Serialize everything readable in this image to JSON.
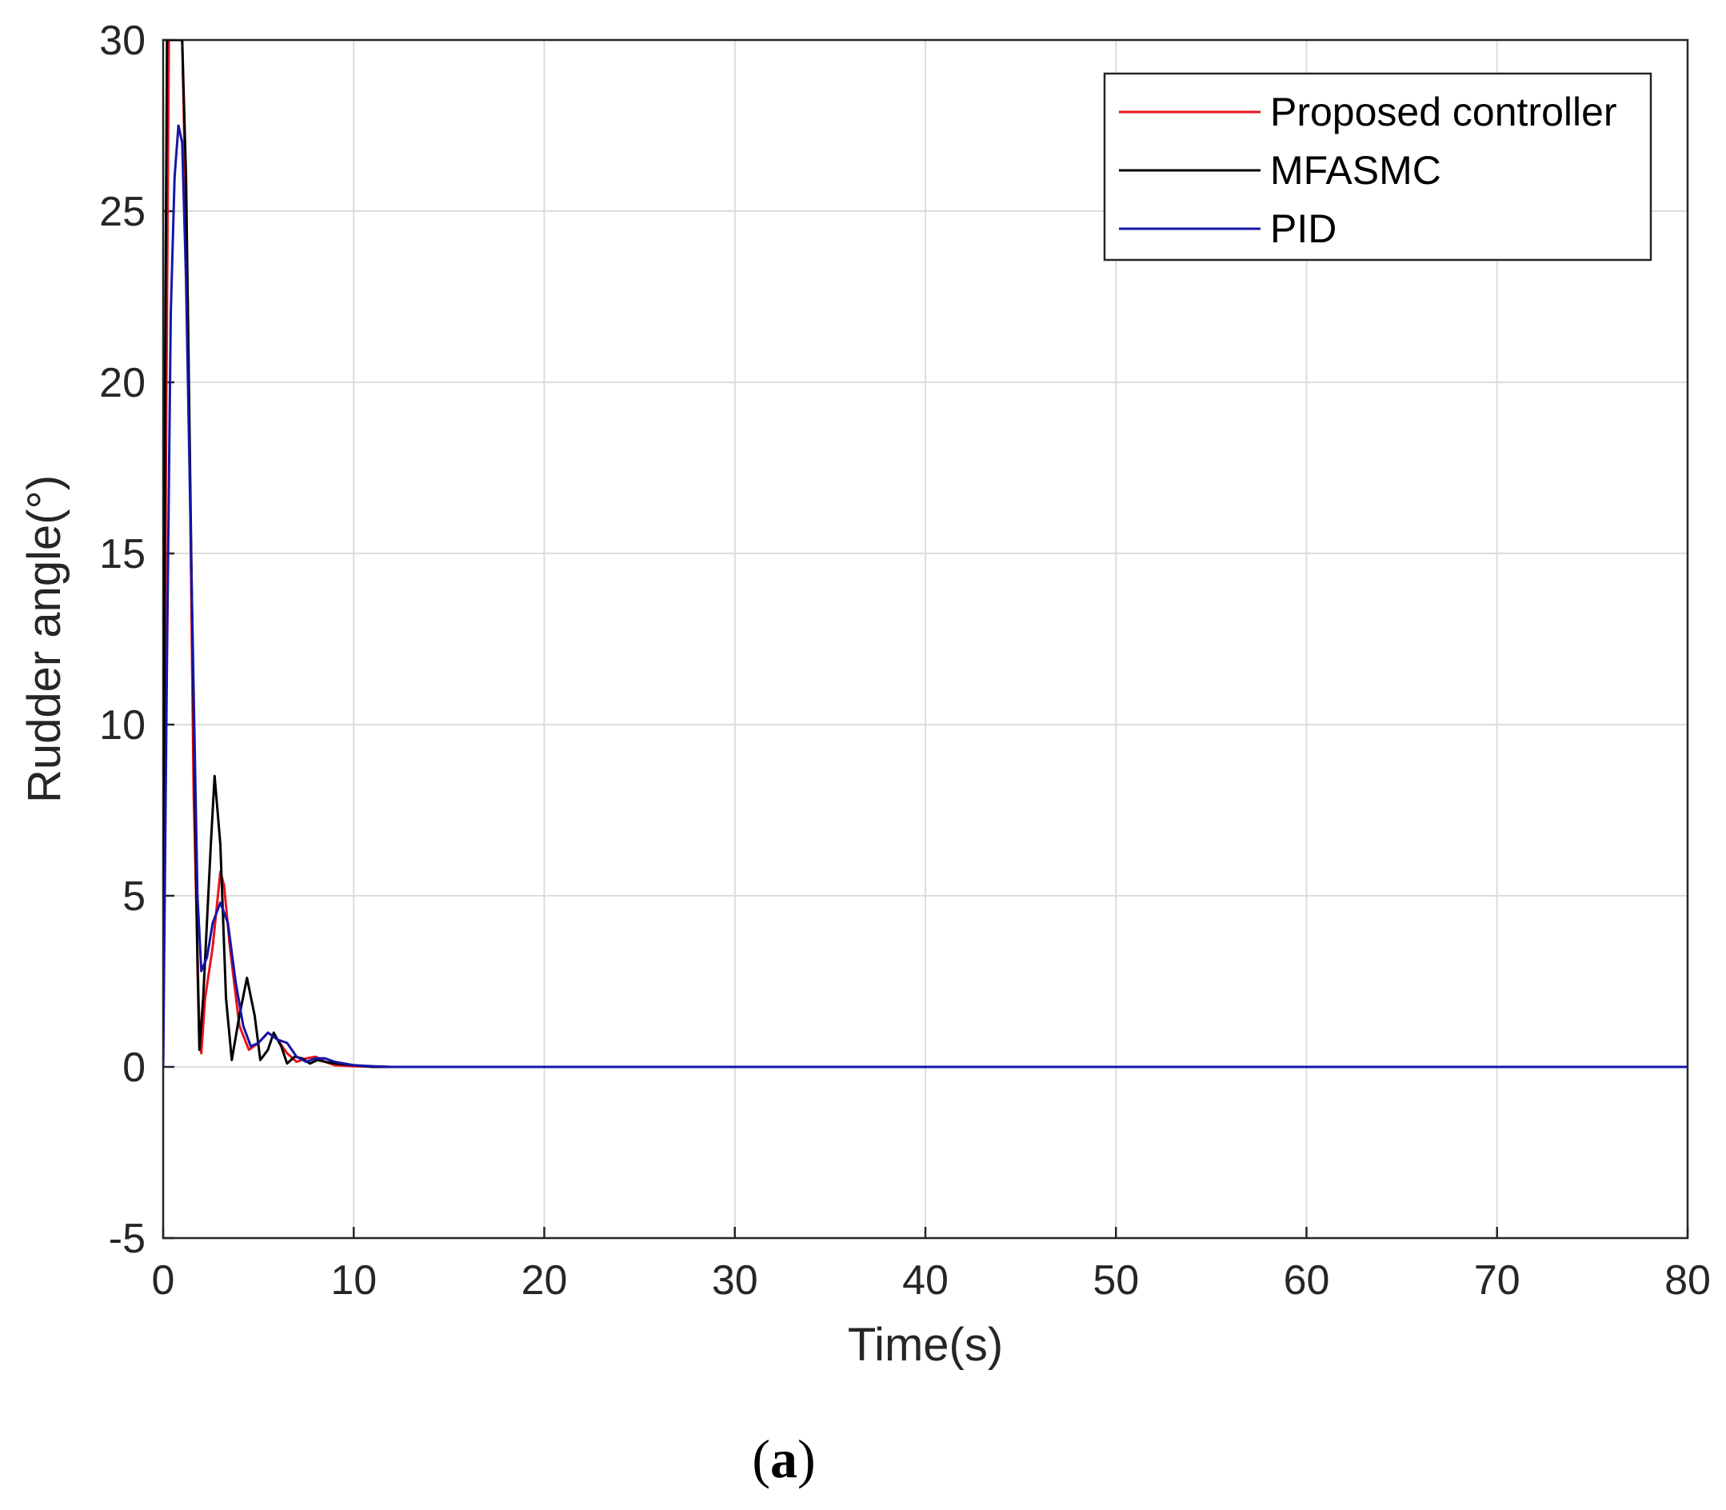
{
  "chart_data": {
    "type": "line",
    "xlabel": "Time(s)",
    "ylabel": "Rudder angle(°)",
    "xlim": [
      0,
      80
    ],
    "ylim": [
      -5,
      30
    ],
    "xticks": [
      0,
      10,
      20,
      30,
      40,
      50,
      60,
      70,
      80
    ],
    "yticks": [
      -5,
      0,
      5,
      10,
      15,
      20,
      25,
      30
    ],
    "grid": true,
    "legend_position": "top-right",
    "series": [
      {
        "name": "Proposed controller",
        "color": "#e8121b",
        "x": [
          0,
          0.15,
          0.3,
          0.5,
          1.0,
          1.3,
          1.6,
          1.9,
          2.0,
          2.2,
          2.6,
          3.0,
          3.2,
          3.5,
          4.0,
          4.5,
          5.0,
          5.5,
          6.0,
          6.5,
          7.0,
          7.5,
          8.0,
          8.5,
          9.0,
          10,
          11,
          12,
          80
        ],
        "y": [
          0,
          18,
          30,
          30,
          30,
          22,
          8,
          1,
          0.4,
          2,
          3.5,
          5.7,
          5.3,
          3.5,
          1.2,
          0.5,
          0.7,
          1.0,
          0.8,
          0.4,
          0.15,
          0.25,
          0.3,
          0.15,
          0.05,
          0.02,
          0.01,
          0,
          0
        ]
      },
      {
        "name": "MFASMC",
        "color": "#000000",
        "x": [
          0,
          0.1,
          0.2,
          1.0,
          1.2,
          1.5,
          1.8,
          1.9,
          2.1,
          2.5,
          2.7,
          3.0,
          3.3,
          3.6,
          4.0,
          4.4,
          4.8,
          5.1,
          5.5,
          5.8,
          6.2,
          6.5,
          6.9,
          7.3,
          7.7,
          8.1,
          8.5,
          9.0,
          10,
          11,
          80
        ],
        "y": [
          0,
          20,
          30,
          30,
          26,
          14,
          3,
          0.5,
          2,
          6.5,
          8.5,
          6.5,
          2,
          0.2,
          1.5,
          2.6,
          1.5,
          0.2,
          0.5,
          1.0,
          0.6,
          0.1,
          0.3,
          0.25,
          0.1,
          0.2,
          0.15,
          0.1,
          0.05,
          0,
          0
        ]
      },
      {
        "name": "PID",
        "color": "#1515a8",
        "x": [
          0,
          0.2,
          0.4,
          0.6,
          0.8,
          1.0,
          1.2,
          1.5,
          1.8,
          2.0,
          2.3,
          2.6,
          3.0,
          3.4,
          3.8,
          4.2,
          4.6,
          5.0,
          5.5,
          6.0,
          6.5,
          7.0,
          7.5,
          8.0,
          8.5,
          9.0,
          10,
          11,
          12,
          80
        ],
        "y": [
          0,
          12,
          22,
          26,
          27.5,
          27,
          23,
          14,
          5,
          2.8,
          3.2,
          4.2,
          4.8,
          4.2,
          2.5,
          1.2,
          0.6,
          0.7,
          1.0,
          0.8,
          0.7,
          0.3,
          0.15,
          0.25,
          0.25,
          0.15,
          0.05,
          0.02,
          0,
          0
        ]
      }
    ]
  },
  "caption": {
    "open": "(",
    "letter": "a",
    "close": ")"
  }
}
